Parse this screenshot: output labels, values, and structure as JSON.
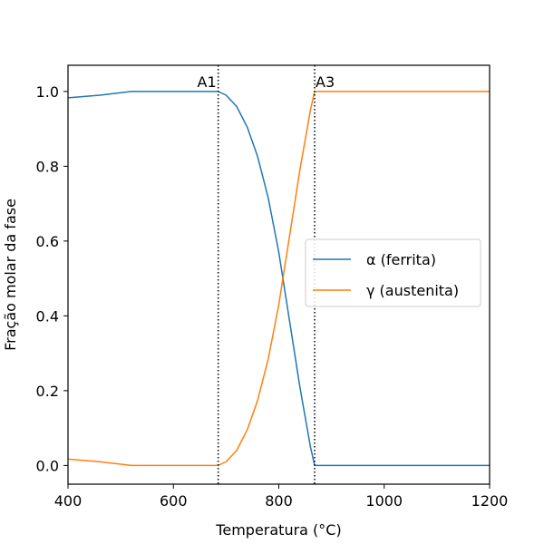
{
  "chart_data": {
    "type": "line",
    "xlabel": "Temperatura (°C)",
    "ylabel": "Fração molar da fase",
    "xlim": [
      400,
      1200
    ],
    "ylim": [
      -0.05,
      1.07
    ],
    "xticks": [
      400,
      600,
      800,
      1000,
      1200
    ],
    "yticks": [
      0.0,
      0.2,
      0.4,
      0.6,
      0.8,
      1.0
    ],
    "ytick_labels": [
      "0.0",
      "0.2",
      "0.4",
      "0.6",
      "0.8",
      "1.0"
    ],
    "grid": false,
    "legend_position": "center-right",
    "series": [
      {
        "name": "α (ferrita)",
        "color": "#1f77b4",
        "x": [
          400,
          460,
          520,
          580,
          640,
          685,
          700,
          720,
          740,
          760,
          780,
          800,
          820,
          840,
          860,
          868,
          900,
          1000,
          1100,
          1200
        ],
        "y": [
          0.983,
          0.99,
          1.0,
          1.0,
          1.0,
          1.0,
          0.99,
          0.96,
          0.905,
          0.825,
          0.715,
          0.57,
          0.39,
          0.21,
          0.05,
          0.0,
          0.0,
          0.0,
          0.0,
          0.0
        ]
      },
      {
        "name": "γ (austenita)",
        "color": "#ff7f0e",
        "x": [
          400,
          460,
          520,
          580,
          640,
          685,
          700,
          720,
          740,
          760,
          780,
          800,
          820,
          840,
          860,
          868,
          900,
          1000,
          1100,
          1200
        ],
        "y": [
          0.017,
          0.01,
          0.0,
          0.0,
          0.0,
          0.0,
          0.01,
          0.04,
          0.095,
          0.175,
          0.285,
          0.43,
          0.61,
          0.79,
          0.95,
          1.0,
          1.0,
          1.0,
          1.0,
          1.0
        ]
      }
    ],
    "annotations": [
      {
        "label": "A1",
        "x": 685
      },
      {
        "label": "A3",
        "x": 868
      }
    ]
  }
}
